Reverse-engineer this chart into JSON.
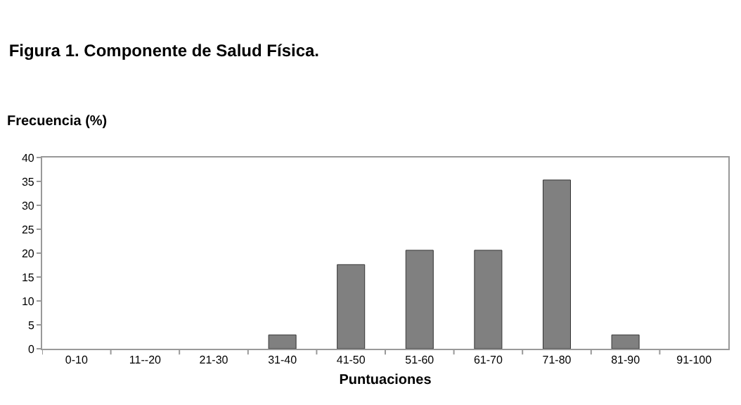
{
  "chart_data": {
    "type": "bar",
    "title": "Figura 1. Componente de Salud Física.",
    "ylabel": "Frecuencia (%)",
    "xlabel": "Puntuaciones",
    "categories": [
      "0-10",
      "11--20",
      "21-30",
      "31-40",
      "41-50",
      "51-60",
      "61-70",
      "71-80",
      "81-90",
      "91-100"
    ],
    "values": [
      0,
      0,
      0,
      2.9,
      17.6,
      20.6,
      20.6,
      35.3,
      2.9,
      0
    ],
    "color": "#808080",
    "ylim": [
      0,
      40
    ],
    "yticks": [
      0,
      5,
      10,
      15,
      20,
      25,
      30,
      35,
      40
    ],
    "grid": false,
    "legend": false
  }
}
